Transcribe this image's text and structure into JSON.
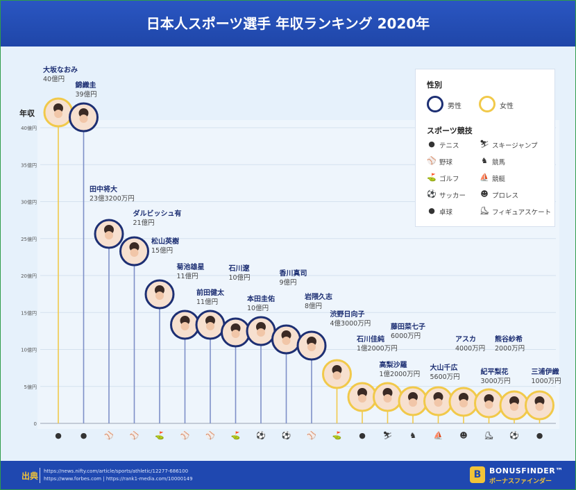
{
  "title": "日本人スポーツ選手 年収ランキング 2020年",
  "legend": {
    "gender_title": "性別",
    "male": "男性",
    "female": "女性",
    "sports_title": "スポーツ競技",
    "sports": [
      {
        "label": "テニス",
        "icon": "tennis-ball-icon",
        "glyph": "●"
      },
      {
        "label": "スキージャンプ",
        "icon": "ski-jump-icon",
        "glyph": "⛷"
      },
      {
        "label": "野球",
        "icon": "baseball-bat-icon",
        "glyph": "⚾"
      },
      {
        "label": "競馬",
        "icon": "horse-icon",
        "glyph": "♞"
      },
      {
        "label": "ゴルフ",
        "icon": "golf-flag-icon",
        "glyph": "⛳"
      },
      {
        "label": "競艇",
        "icon": "boat-icon",
        "glyph": "⛵"
      },
      {
        "label": "サッカー",
        "icon": "soccer-ball-icon",
        "glyph": "⚽"
      },
      {
        "label": "プロレス",
        "icon": "wrestling-mask-icon",
        "glyph": "☻"
      },
      {
        "label": "卓球",
        "icon": "table-tennis-icon",
        "glyph": "●"
      },
      {
        "label": "フィギュアスケート",
        "icon": "skate-icon",
        "glyph": "⛸"
      }
    ]
  },
  "chart_data": {
    "type": "bar",
    "ylabel": "年収",
    "y_unit": "億円",
    "ylim": [
      0,
      40
    ],
    "yticks": [
      0,
      5,
      10,
      15,
      20,
      25,
      30,
      35,
      40
    ],
    "ytick_labels": [
      "0",
      "5億円",
      "10億円",
      "15億円",
      "20億円",
      "25億円",
      "30億円",
      "35億円",
      "40億円"
    ],
    "grid": true,
    "legend_position": "top-right",
    "colors": {
      "male": "#1d2f73",
      "female": "#f1c94a"
    },
    "athletes": [
      {
        "name": "大坂なおみ",
        "amount": "40億円",
        "value": 40,
        "gender": "female",
        "sport": "テニス",
        "icon": "tennis-ball-icon"
      },
      {
        "name": "錦織圭",
        "amount": "39億円",
        "value": 39,
        "gender": "male",
        "sport": "テニス",
        "icon": "tennis-ball-icon"
      },
      {
        "name": "田中将大",
        "amount": "23億3200万円",
        "value": 23.32,
        "gender": "male",
        "sport": "野球",
        "icon": "baseball-bat-icon"
      },
      {
        "name": "ダルビッシュ有",
        "amount": "21億円",
        "value": 21,
        "gender": "male",
        "sport": "野球",
        "icon": "baseball-bat-icon"
      },
      {
        "name": "松山英樹",
        "amount": "15億円",
        "value": 15,
        "gender": "male",
        "sport": "ゴルフ",
        "icon": "golf-flag-icon"
      },
      {
        "name": "菊池雄星",
        "amount": "11億円",
        "value": 11,
        "gender": "male",
        "sport": "野球",
        "icon": "baseball-bat-icon"
      },
      {
        "name": "前田健太",
        "amount": "11億円",
        "value": 11,
        "gender": "male",
        "sport": "野球",
        "icon": "baseball-bat-icon"
      },
      {
        "name": "石川遼",
        "amount": "10億円",
        "value": 10,
        "gender": "male",
        "sport": "ゴルフ",
        "icon": "golf-flag-icon"
      },
      {
        "name": "本田圭佑",
        "amount": "10億円",
        "value": 10,
        "gender": "male",
        "sport": "サッカー",
        "icon": "soccer-ball-icon"
      },
      {
        "name": "香川真司",
        "amount": "9億円",
        "value": 9,
        "gender": "male",
        "sport": "サッカー",
        "icon": "soccer-ball-icon"
      },
      {
        "name": "岩隈久志",
        "amount": "8億円",
        "value": 8,
        "gender": "male",
        "sport": "野球",
        "icon": "baseball-bat-icon"
      },
      {
        "name": "渋野日向子",
        "amount": "4億3000万円",
        "value": 4.3,
        "gender": "female",
        "sport": "ゴルフ",
        "icon": "golf-flag-icon"
      },
      {
        "name": "石川佳純",
        "amount": "1億2000万円",
        "value": 1.2,
        "gender": "female",
        "sport": "卓球",
        "icon": "table-tennis-icon"
      },
      {
        "name": "高梨沙羅",
        "amount": "1億2000万円",
        "value": 1.2,
        "gender": "female",
        "sport": "スキージャンプ",
        "icon": "ski-jump-icon"
      },
      {
        "name": "藤田菜七子",
        "amount": "6000万円",
        "value": 0.6,
        "gender": "female",
        "sport": "競馬",
        "icon": "horse-icon"
      },
      {
        "name": "大山千広",
        "amount": "5600万円",
        "value": 0.56,
        "gender": "female",
        "sport": "競艇",
        "icon": "boat-icon"
      },
      {
        "name": "アスカ",
        "amount": "4000万円",
        "value": 0.4,
        "gender": "female",
        "sport": "プロレス",
        "icon": "wrestling-mask-icon"
      },
      {
        "name": "紀平梨花",
        "amount": "3000万円",
        "value": 0.3,
        "gender": "female",
        "sport": "フィギュアスケート",
        "icon": "skate-icon"
      },
      {
        "name": "熊谷紗希",
        "amount": "2000万円",
        "value": 0.2,
        "gender": "female",
        "sport": "サッカー",
        "icon": "soccer-ball-icon"
      },
      {
        "name": "三浦伊織",
        "amount": "1000万円",
        "value": 0.1,
        "gender": "female",
        "sport": "卓球",
        "icon": "table-tennis-icon"
      }
    ]
  },
  "footer": {
    "source_label": "出典",
    "source_line1": "https://news.nifty.com/article/sports/athletic/12277-686100",
    "source_line2": "https://www.forbes.com | https://rank1-media.com/10000149",
    "brand_name": "BONUSFINDER™",
    "brand_sub": "ボーナスファインダー"
  }
}
